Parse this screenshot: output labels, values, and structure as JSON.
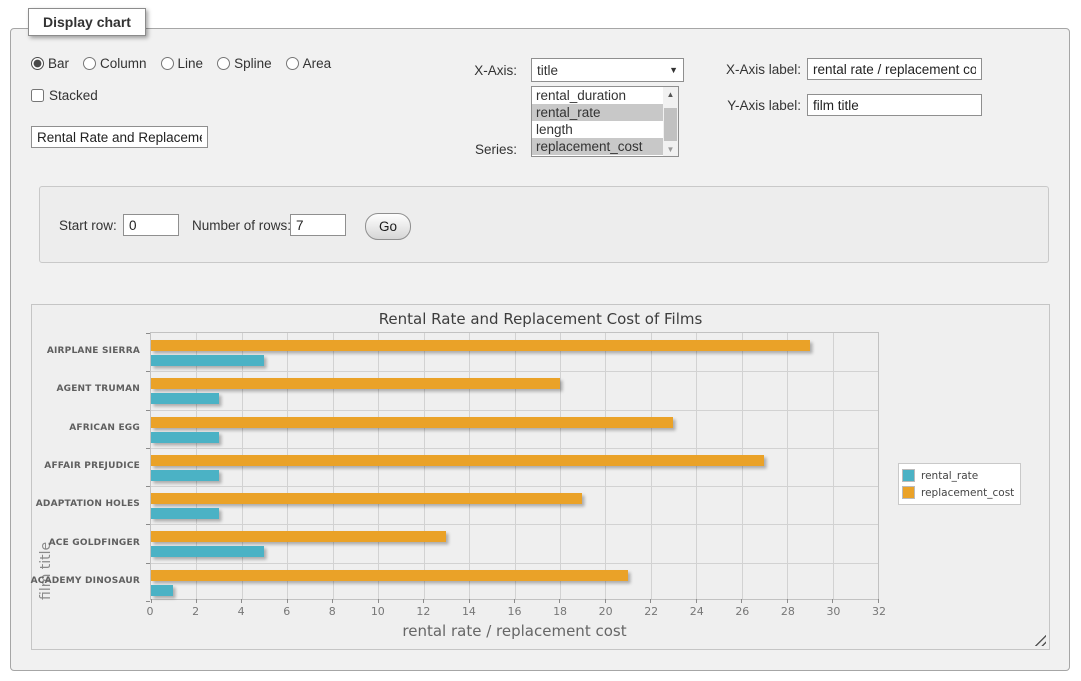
{
  "page": {
    "legend_title": "Display chart"
  },
  "icons": {
    "select_arrow": "▼",
    "scroll_up": "▲",
    "scroll_down": "▼"
  },
  "controls": {
    "chart_types": [
      {
        "label": "Bar",
        "selected": true
      },
      {
        "label": "Column",
        "selected": false
      },
      {
        "label": "Line",
        "selected": false
      },
      {
        "label": "Spline",
        "selected": false
      },
      {
        "label": "Area",
        "selected": false
      }
    ],
    "stacked_label": "Stacked",
    "stacked_checked": false,
    "chart_title_value": "Rental Rate and Replacement Cost of Films",
    "x_axis_label_text": "X-Axis:",
    "x_axis_selected": "title",
    "series_label_text": "Series:",
    "series_options": [
      {
        "label": "rental_duration",
        "selected": false
      },
      {
        "label": "rental_rate",
        "selected": true
      },
      {
        "label": "length",
        "selected": false
      },
      {
        "label": "replacement_cost",
        "selected": true
      }
    ],
    "x_axis_label_field": {
      "label": "X-Axis label:",
      "value": "rental rate / replacement cost"
    },
    "y_axis_label_field": {
      "label": "Y-Axis label:",
      "value": "film title"
    }
  },
  "row_controls": {
    "start_row_label": "Start row:",
    "start_row_value": "0",
    "num_rows_label": "Number of rows:",
    "num_rows_value": "7",
    "go_label": "Go"
  },
  "chart_data": {
    "type": "bar",
    "orientation": "horizontal",
    "title": "Rental Rate and Replacement Cost of Films",
    "categories": [
      "AIRPLANE SIERRA",
      "AGENT TRUMAN",
      "AFRICAN EGG",
      "AFFAIR PREJUDICE",
      "ADAPTATION HOLES",
      "ACE GOLDFINGER",
      "ACADEMY DINOSAUR"
    ],
    "series": [
      {
        "name": "rental_rate",
        "color": "#4bb2c5",
        "values": [
          4.99,
          2.99,
          2.99,
          2.99,
          2.99,
          4.99,
          0.99
        ]
      },
      {
        "name": "replacement_cost",
        "color": "#EAA228",
        "values": [
          28.99,
          17.99,
          22.99,
          26.99,
          18.99,
          12.99,
          20.99
        ]
      }
    ],
    "xlabel": "rental rate / replacement cost",
    "ylabel": "film title",
    "xlim": [
      0,
      32
    ],
    "xticks": [
      0,
      2,
      4,
      6,
      8,
      10,
      12,
      14,
      16,
      18,
      20,
      22,
      24,
      26,
      28,
      30,
      32
    ],
    "grid": true,
    "legend_position": "right"
  }
}
